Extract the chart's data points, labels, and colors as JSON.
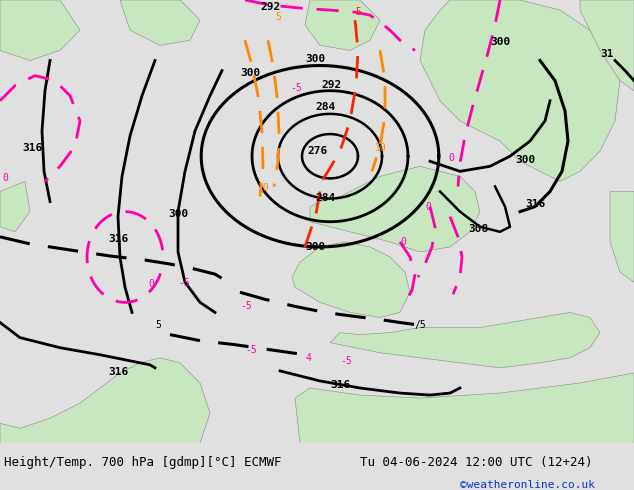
{
  "title_left": "Height/Temp. 700 hPa [gdmp][°C] ECMWF",
  "title_right": "Tu 04-06-2024 12:00 UTC (12+24)",
  "credit": "©weatheronline.co.uk",
  "bg_color": "#e0e0e0",
  "land_color": "#c8e6c0",
  "sea_color": "#d8d8d8",
  "hc": "#000000",
  "mc": "#ff00aa",
  "rc": "#ff2200",
  "oc": "#ff8800",
  "figsize": [
    6.34,
    4.9
  ],
  "dpi": 100
}
